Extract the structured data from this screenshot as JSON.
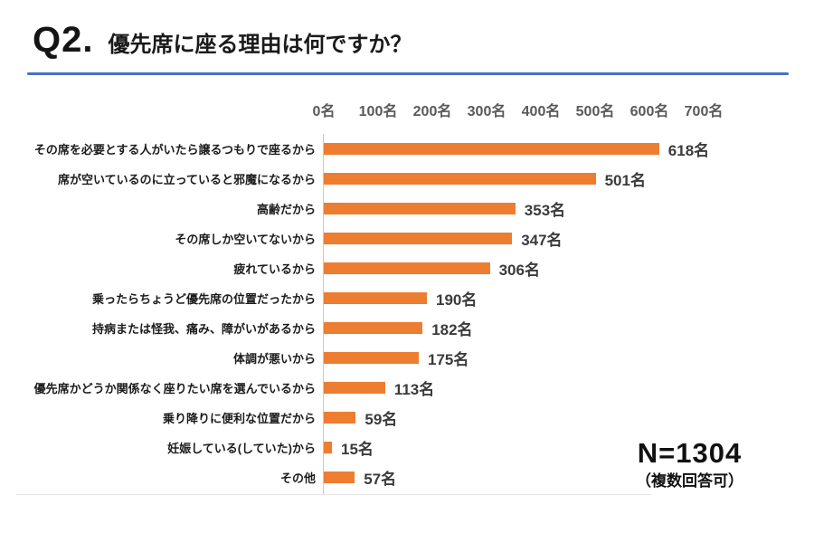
{
  "header": {
    "question_number": "Q2.",
    "title": "優先席に座る理由は何ですか？",
    "accent_color": "#4472C4"
  },
  "chart_data": {
    "type": "bar",
    "orientation": "horizontal",
    "title": "優先席に座る理由は何ですか？",
    "unit": "名",
    "categories": [
      "その席を必要とする人がいたら譲るつもりで座るから",
      "席が空いているのに立っていると邪魔になるから",
      "高齢だから",
      "その席しか空いてないから",
      "疲れているから",
      "乗ったらちょうど優先席の位置だったから",
      "持病または怪我、痛み、障がいがあるから",
      "体調が悪いから",
      "優先席かどうか関係なく座りたい席を選んでいるから",
      "乗り降りに便利な位置だから",
      "妊娠している(していた)から",
      "その他"
    ],
    "values": [
      618,
      501,
      353,
      347,
      306,
      190,
      182,
      175,
      113,
      59,
      15,
      57
    ],
    "value_labels": [
      "618名",
      "501名",
      "353名",
      "347名",
      "306名",
      "190名",
      "182名",
      "175名",
      "113名",
      "59名",
      "15名",
      "57名"
    ],
    "x_ticks": [
      "0名",
      "100名",
      "200名",
      "300名",
      "400名",
      "500名",
      "600名",
      "700名"
    ],
    "x_tick_values": [
      0,
      100,
      200,
      300,
      400,
      500,
      600,
      700
    ],
    "xlim": [
      0,
      700
    ],
    "bar_color": "#ED7D31",
    "axis_label_color": "#595959",
    "gridlines": false,
    "legend": "none"
  },
  "annotation": {
    "sample_size": "N=1304",
    "note": "（複数回答可）"
  }
}
